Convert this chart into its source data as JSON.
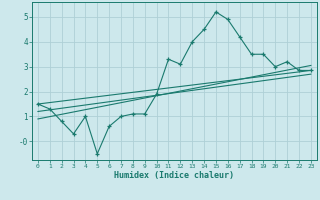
{
  "xlabel": "Humidex (Indice chaleur)",
  "bg_color": "#cde8ec",
  "grid_color": "#aed0d6",
  "line_color": "#1a7a6e",
  "xlim": [
    -0.5,
    23.5
  ],
  "ylim": [
    -0.75,
    5.6
  ],
  "yticks": [
    0,
    1,
    2,
    3,
    4,
    5
  ],
  "ytick_labels": [
    "-0",
    "1",
    "2",
    "3",
    "4",
    "5"
  ],
  "xticks": [
    0,
    1,
    2,
    3,
    4,
    5,
    6,
    7,
    8,
    9,
    10,
    11,
    12,
    13,
    14,
    15,
    16,
    17,
    18,
    19,
    20,
    21,
    22,
    23
  ],
  "line1_x": [
    0,
    1,
    2,
    3,
    4,
    5,
    6,
    7,
    8,
    9,
    10,
    11,
    12,
    13,
    14,
    15,
    16,
    17,
    18,
    19,
    20,
    21,
    22,
    23
  ],
  "line1_y": [
    1.5,
    1.3,
    0.8,
    0.3,
    1.0,
    -0.5,
    0.6,
    1.0,
    1.1,
    1.1,
    1.9,
    3.3,
    3.1,
    4.0,
    4.5,
    5.2,
    4.9,
    4.2,
    3.5,
    3.5,
    3.0,
    3.2,
    2.85,
    2.85
  ],
  "line2_x": [
    0,
    23
  ],
  "line2_y": [
    1.5,
    2.85
  ],
  "line3_x": [
    0,
    23
  ],
  "line3_y": [
    1.2,
    2.7
  ],
  "line4_x": [
    0,
    23
  ],
  "line4_y": [
    0.9,
    3.05
  ]
}
